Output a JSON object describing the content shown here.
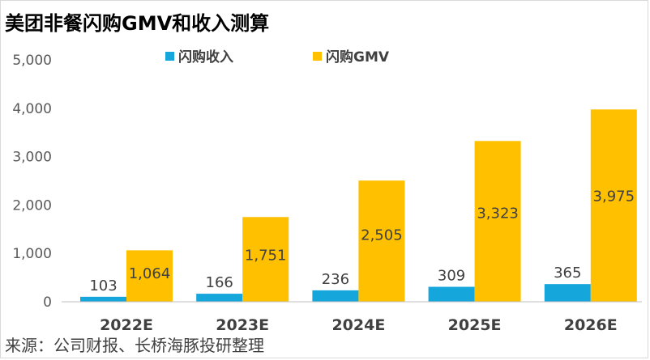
{
  "title": "美团非餐闪购GMV和收入测算",
  "source": "来源：公司财报、长桥海豚投研整理",
  "colors": {
    "revenue": "#15a6dc",
    "gmv": "#ffc000",
    "axis": "#bfbfbf"
  },
  "chart_data": {
    "type": "bar",
    "title": "美团非餐闪购GMV和收入测算",
    "categories": [
      "2022E",
      "2023E",
      "2024E",
      "2025E",
      "2026E"
    ],
    "series": [
      {
        "name": "闪购收入",
        "values": [
          103,
          166,
          236,
          309,
          365
        ]
      },
      {
        "name": "闪购GMV",
        "values": [
          1064,
          1751,
          2505,
          3323,
          3975
        ]
      }
    ],
    "yticks": [
      "0",
      "1,000",
      "2,000",
      "3,000",
      "4,000",
      "5,000"
    ],
    "ylim": [
      0,
      5000
    ],
    "grid": false,
    "legend": "top-left"
  }
}
